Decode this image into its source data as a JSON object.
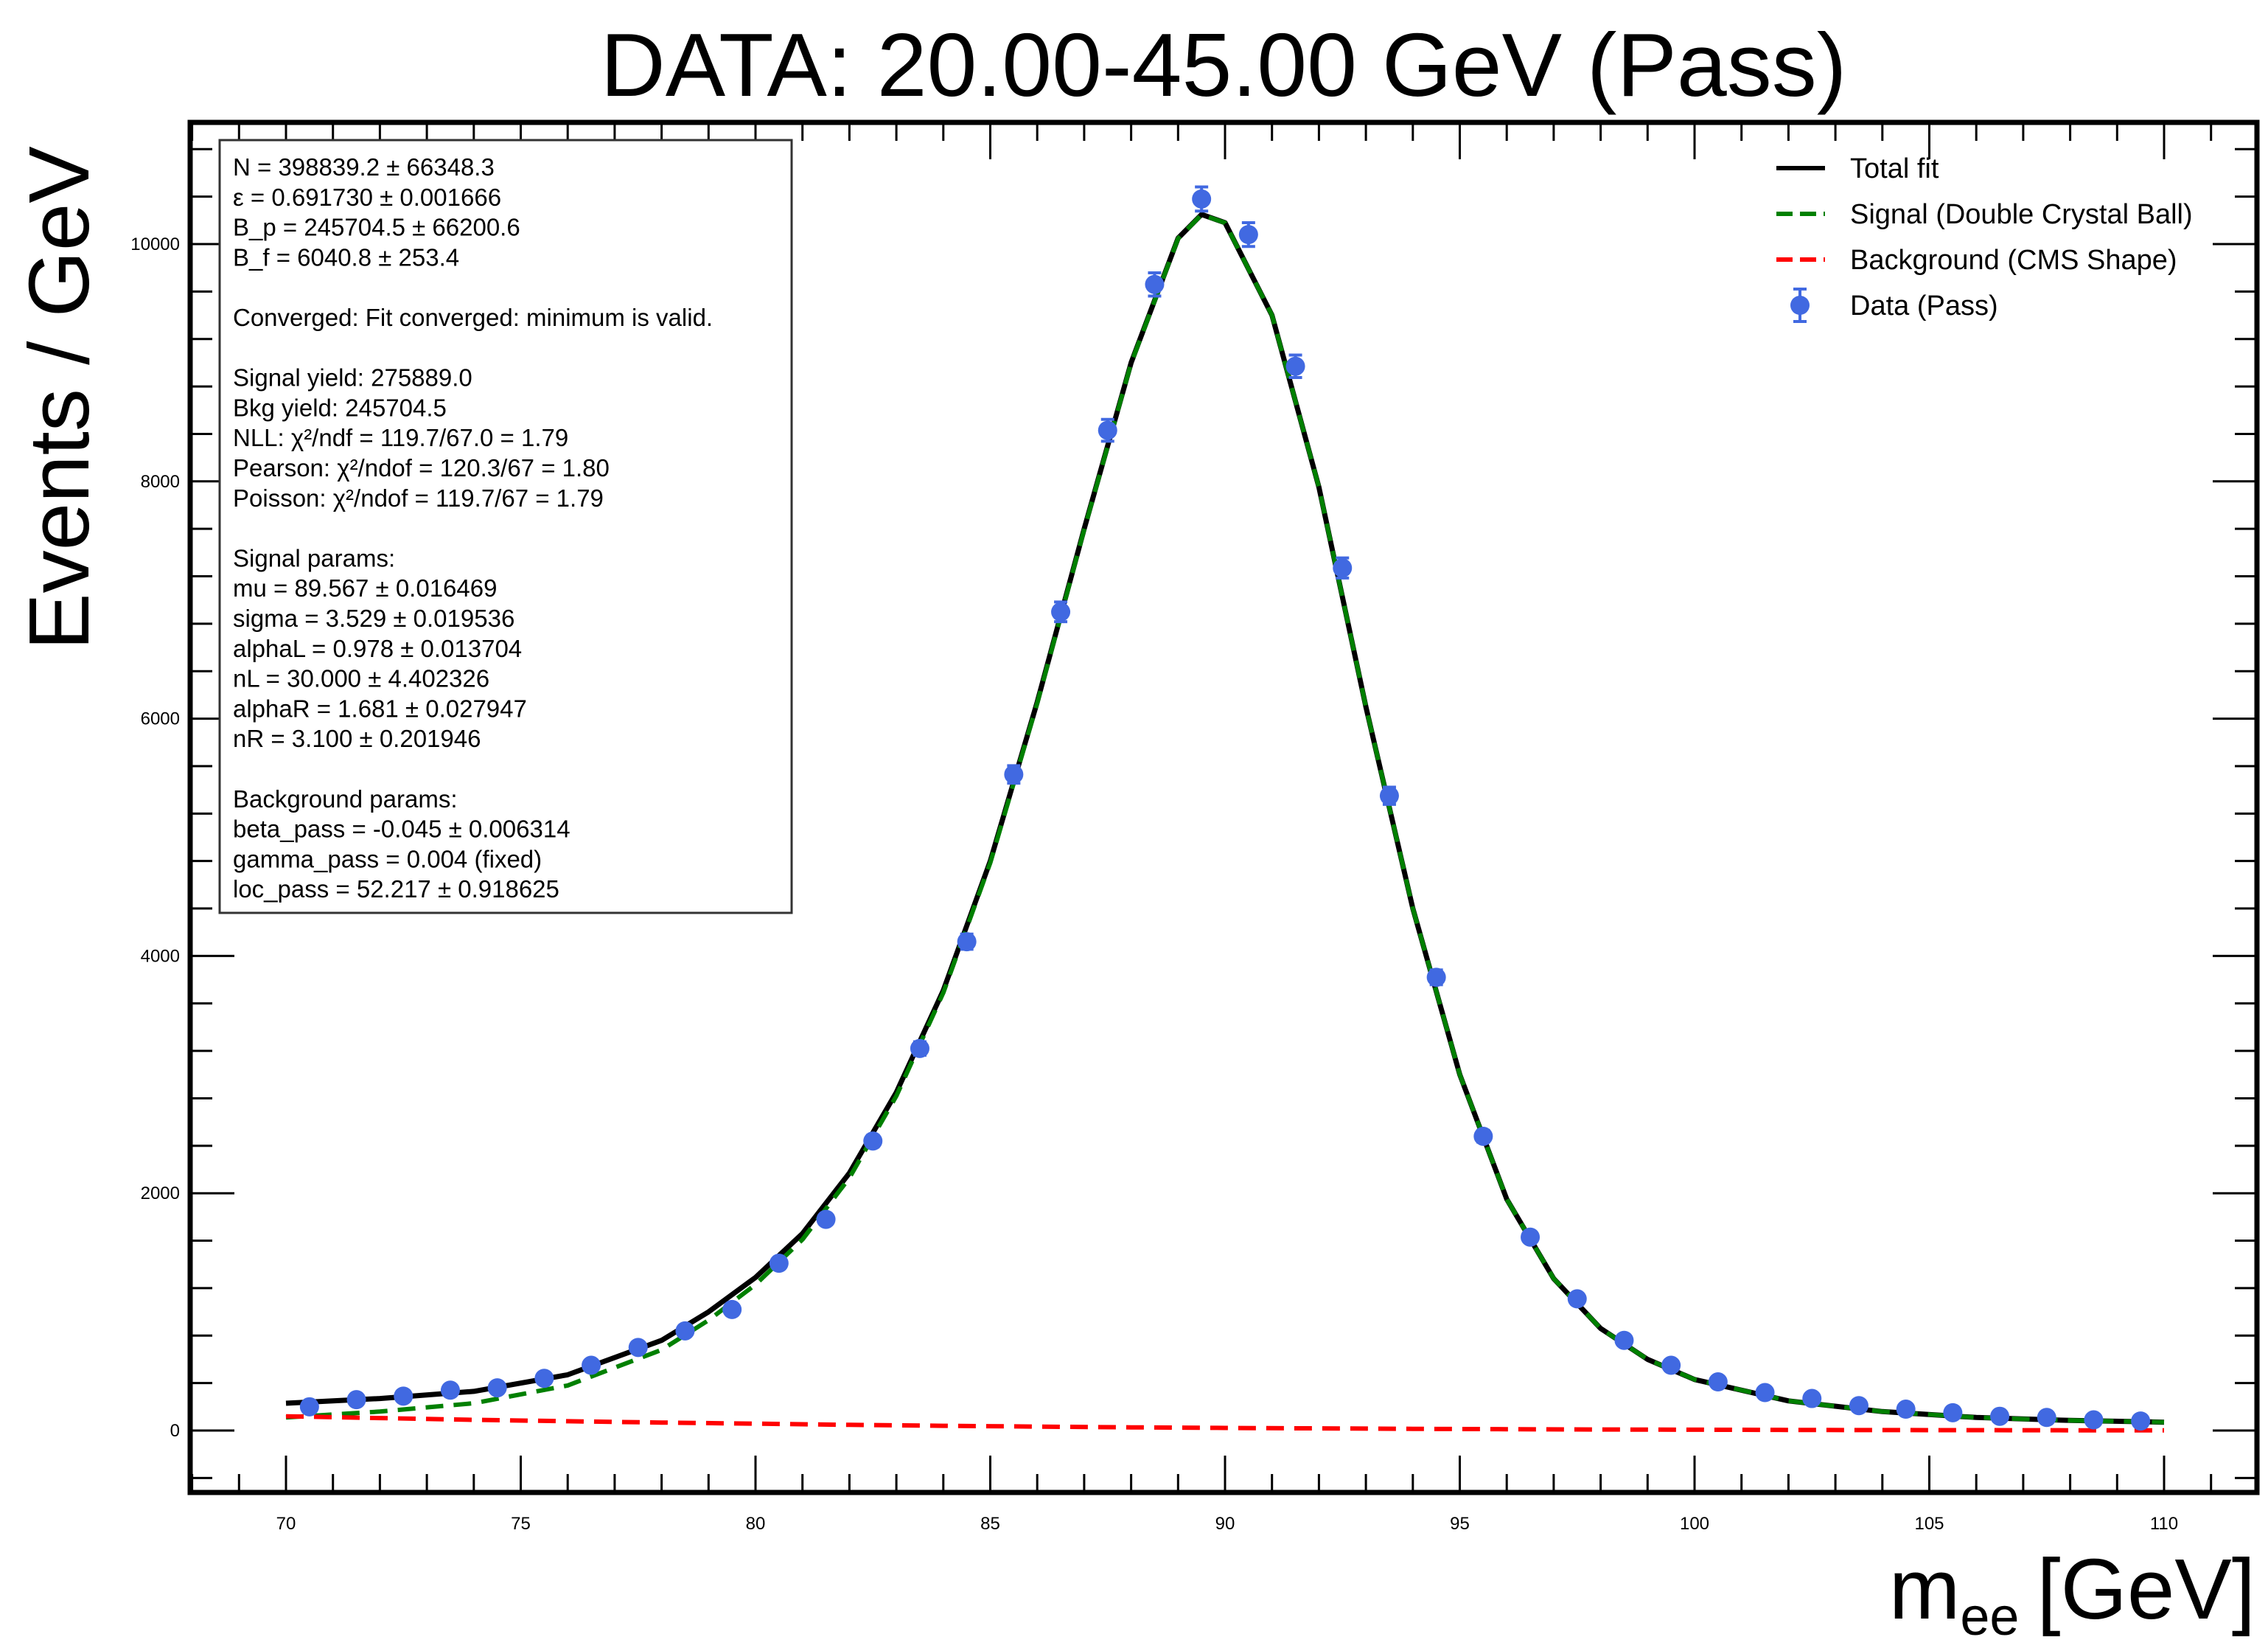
{
  "chart_data": {
    "type": "scatter",
    "title": "DATA: 20.00-45.00 GeV (Pass)",
    "xlabel_main": "m",
    "xlabel_sub": "ee",
    "xlabel_unit": "[GeV]",
    "ylabel": "Events / GeV",
    "xlim": [
      68,
      111
    ],
    "ylim": [
      -500,
      11000
    ],
    "xticks": [
      70,
      75,
      80,
      85,
      90,
      95,
      100,
      105,
      110
    ],
    "yticks": [
      0,
      2000,
      4000,
      6000,
      8000,
      10000
    ],
    "grid": false,
    "legend_position": "top-right",
    "legend": [
      {
        "label": "Total fit",
        "style": "solid",
        "color": "#000000"
      },
      {
        "label": "Signal (Double Crystal Ball)",
        "style": "dashed",
        "color": "#008000"
      },
      {
        "label": "Background (CMS Shape)",
        "style": "dashed",
        "color": "#ff0000"
      },
      {
        "label": "Data (Pass)",
        "style": "marker",
        "color": "#4169e1"
      }
    ],
    "stats_box": [
      "N = 398839.2 ± 66348.3",
      "ε = 0.691730 ± 0.001666",
      "B_p = 245704.5 ± 66200.6",
      "B_f = 6040.8 ± 253.4",
      "",
      "Converged: Fit converged: minimum is valid.",
      "",
      "Signal yield: 275889.0",
      "Bkg yield: 245704.5",
      "NLL: χ²/ndf = 119.7/67.0 = 1.79",
      "Pearson: χ²/ndof = 120.3/67 = 1.80",
      "Poisson: χ²/ndof = 119.7/67 = 1.79",
      "",
      "Signal params:",
      "mu = 89.567 ± 0.016469",
      "sigma = 3.529 ± 0.019536",
      "alphaL = 0.978 ± 0.013704",
      "nL = 30.000 ± 4.402326",
      "alphaR = 1.681 ± 0.027947",
      "nR = 3.100 ± 0.201946",
      "",
      "Background params:",
      "beta_pass = -0.045 ± 0.006314",
      "gamma_pass = 0.004 (fixed)",
      "loc_pass = 52.217 ± 0.918625"
    ],
    "series": [
      {
        "name": "Data (Pass)",
        "kind": "points",
        "color": "#4169e1",
        "x": [
          70.5,
          71.5,
          72.5,
          73.5,
          74.5,
          75.5,
          76.5,
          77.5,
          78.5,
          79.5,
          80.5,
          81.5,
          82.5,
          83.5,
          84.5,
          85.5,
          86.5,
          87.5,
          88.5,
          89.5,
          90.5,
          91.5,
          92.5,
          93.5,
          94.5,
          95.5,
          96.5,
          97.5,
          98.5,
          99.5,
          100.5,
          101.5,
          102.5,
          103.5,
          104.5,
          105.5,
          106.5,
          107.5,
          108.5,
          109.5
        ],
        "y": [
          200,
          260,
          290,
          340,
          360,
          440,
          550,
          700,
          840,
          1020,
          1410,
          1780,
          2440,
          3220,
          4120,
          5530,
          6900,
          8430,
          9660,
          10380,
          10080,
          8970,
          7270,
          5350,
          3820,
          2480,
          1630,
          1110,
          760,
          550,
          410,
          320,
          270,
          210,
          180,
          150,
          120,
          110,
          90,
          80
        ],
        "yerr": [
          15,
          16,
          17,
          18,
          19,
          21,
          23,
          26,
          29,
          32,
          38,
          42,
          49,
          57,
          64,
          74,
          83,
          92,
          98,
          102,
          100,
          95,
          85,
          73,
          62,
          50,
          40,
          33,
          28,
          24,
          20,
          18,
          16,
          15,
          13,
          12,
          11,
          10,
          10,
          9
        ]
      },
      {
        "name": "Total fit",
        "kind": "line",
        "style": "solid",
        "color": "#000000",
        "x": [
          70,
          72,
          74,
          76,
          78,
          79,
          80,
          81,
          82,
          83,
          84,
          85,
          86,
          87,
          88,
          89,
          89.5,
          90,
          91,
          92,
          93,
          94,
          95,
          96,
          97,
          98,
          99,
          100,
          102,
          104,
          106,
          108,
          110
        ],
        "y": [
          230,
          270,
          330,
          470,
          760,
          1000,
          1290,
          1660,
          2170,
          2850,
          3710,
          4800,
          6140,
          7600,
          9000,
          10050,
          10250,
          10180,
          9400,
          7950,
          6100,
          4400,
          3000,
          1950,
          1280,
          860,
          600,
          430,
          250,
          160,
          110,
          85,
          70
        ]
      },
      {
        "name": "Signal (Double Crystal Ball)",
        "kind": "line",
        "style": "dashed",
        "color": "#008000",
        "x": [
          70,
          72,
          74,
          76,
          78,
          79,
          80,
          81,
          82,
          83,
          84,
          85,
          86,
          87,
          88,
          89,
          89.5,
          90,
          91,
          92,
          93,
          94,
          95,
          96,
          97,
          98,
          99,
          100,
          102,
          104,
          106,
          108,
          110
        ],
        "y": [
          110,
          160,
          230,
          380,
          680,
          930,
          1230,
          1610,
          2130,
          2820,
          3690,
          4785,
          6130,
          7593,
          8995,
          10047,
          10248,
          10179,
          9400,
          7950,
          6100,
          4400,
          3000,
          1950,
          1280,
          860,
          600,
          430,
          250,
          160,
          110,
          85,
          70
        ]
      },
      {
        "name": "Background (CMS Shape)",
        "kind": "line",
        "style": "dashed",
        "color": "#ff0000",
        "x": [
          70,
          72,
          74,
          76,
          78,
          80,
          82,
          84,
          86,
          88,
          90,
          92,
          94,
          96,
          98,
          100,
          102,
          104,
          106,
          108,
          110
        ],
        "y": [
          120,
          105,
          90,
          78,
          67,
          58,
          48,
          40,
          33,
          27,
          22,
          18,
          14,
          11,
          9,
          7,
          5,
          4,
          3,
          2,
          2
        ]
      }
    ]
  }
}
